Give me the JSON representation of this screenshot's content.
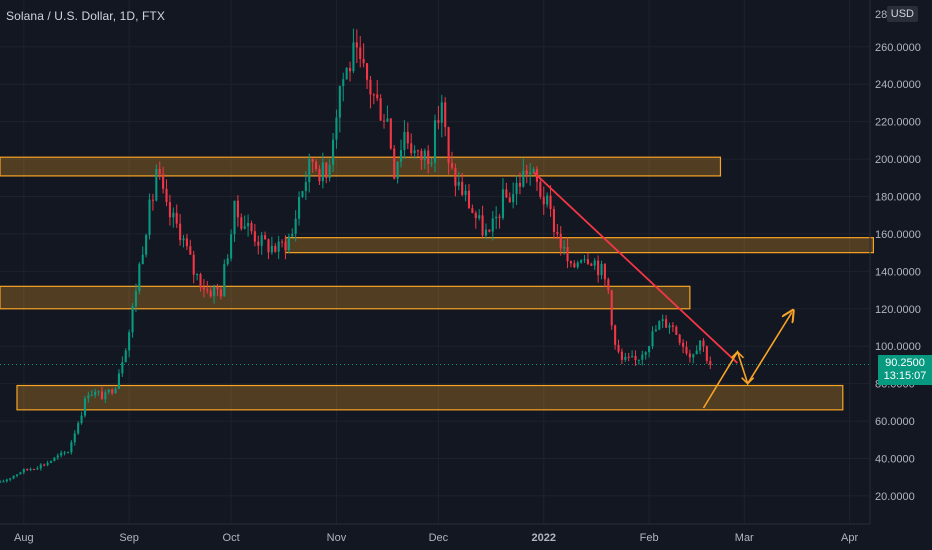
{
  "chart_data": {
    "type": "candlestick",
    "title": "Solana / U.S. Dollar, 1D, FTX",
    "currency": "USD",
    "y_axis": {
      "ylim": [
        5,
        285
      ],
      "tick_values": [
        20,
        40,
        60,
        80,
        100,
        120,
        140,
        160,
        180,
        200,
        220,
        240,
        260
      ],
      "tick_labels": [
        "20.0000",
        "40.0000",
        "60.0000",
        "80.0000",
        "100.0000",
        "120.0000",
        "140.0000",
        "160.0000",
        "180.0000",
        "200.0000",
        "220.0000",
        "240.0000",
        "260.0000"
      ],
      "top_label": "28"
    },
    "x_axis": {
      "range": [
        "2021-07-25",
        "2022-04-07"
      ],
      "ticks": [
        {
          "date": "2021-08-01",
          "label": "Aug"
        },
        {
          "date": "2021-09-01",
          "label": "Sep"
        },
        {
          "date": "2021-10-01",
          "label": "Oct"
        },
        {
          "date": "2021-11-01",
          "label": "Nov"
        },
        {
          "date": "2021-12-01",
          "label": "Dec"
        },
        {
          "date": "2022-01-01",
          "label": "2022"
        },
        {
          "date": "2022-02-01",
          "label": "Feb"
        },
        {
          "date": "2022-03-01",
          "label": "Mar"
        },
        {
          "date": "2022-04-01",
          "label": "Apr"
        }
      ]
    },
    "grid": true,
    "last_price": {
      "value": 90.25,
      "label": "90.2500",
      "countdown": "13:15:07"
    },
    "close_path": [
      [
        "2021-07-25",
        27
      ],
      [
        "2021-07-31",
        33
      ],
      [
        "2021-08-07",
        37
      ],
      [
        "2021-08-14",
        44
      ],
      [
        "2021-08-18",
        65
      ],
      [
        "2021-08-20",
        76
      ],
      [
        "2021-08-25",
        73
      ],
      [
        "2021-08-28",
        80
      ],
      [
        "2021-09-01",
        108
      ],
      [
        "2021-09-04",
        143
      ],
      [
        "2021-09-06",
        165
      ],
      [
        "2021-09-08",
        180
      ],
      [
        "2021-09-09",
        195
      ],
      [
        "2021-09-12",
        172
      ],
      [
        "2021-09-16",
        162
      ],
      [
        "2021-09-20",
        140
      ],
      [
        "2021-09-24",
        130
      ],
      [
        "2021-09-28",
        130
      ],
      [
        "2021-10-02",
        172
      ],
      [
        "2021-10-05",
        166
      ],
      [
        "2021-10-10",
        155
      ],
      [
        "2021-10-15",
        152
      ],
      [
        "2021-10-19",
        160
      ],
      [
        "2021-10-21",
        180
      ],
      [
        "2021-10-25",
        200
      ],
      [
        "2021-10-29",
        190
      ],
      [
        "2021-11-02",
        240
      ],
      [
        "2021-11-06",
        255
      ],
      [
        "2021-11-09",
        245
      ],
      [
        "2021-11-13",
        230
      ],
      [
        "2021-11-16",
        222
      ],
      [
        "2021-11-18",
        195
      ],
      [
        "2021-11-21",
        215
      ],
      [
        "2021-11-25",
        200
      ],
      [
        "2021-11-29",
        205
      ],
      [
        "2021-12-02",
        232
      ],
      [
        "2021-12-04",
        195
      ],
      [
        "2021-12-09",
        180
      ],
      [
        "2021-12-13",
        165
      ],
      [
        "2021-12-16",
        158
      ],
      [
        "2021-12-20",
        178
      ],
      [
        "2021-12-23",
        182
      ],
      [
        "2021-12-27",
        195
      ],
      [
        "2021-12-29",
        190
      ],
      [
        "2022-01-02",
        175
      ],
      [
        "2022-01-05",
        160
      ],
      [
        "2022-01-09",
        140
      ],
      [
        "2022-01-12",
        150
      ],
      [
        "2022-01-15",
        148
      ],
      [
        "2022-01-18",
        140
      ],
      [
        "2022-01-20",
        130
      ],
      [
        "2022-01-22",
        100
      ],
      [
        "2022-01-24",
        92
      ],
      [
        "2022-01-28",
        92
      ],
      [
        "2022-01-31",
        100
      ],
      [
        "2022-02-04",
        112
      ],
      [
        "2022-02-07",
        113
      ],
      [
        "2022-02-10",
        105
      ],
      [
        "2022-02-13",
        95
      ],
      [
        "2022-02-16",
        104
      ],
      [
        "2022-02-19",
        90
      ]
    ],
    "support_resistance_zones": [
      {
        "x0": "2021-07-25",
        "x1": "2022-02-22",
        "y0": 191,
        "y1": 201
      },
      {
        "x0": "2021-10-17",
        "x1": "2022-04-08",
        "y0": 150,
        "y1": 158
      },
      {
        "x0": "2021-07-25",
        "x1": "2022-02-13",
        "y0": 120,
        "y1": 132
      },
      {
        "x0": "2021-07-30",
        "x1": "2022-03-30",
        "y0": 66,
        "y1": 79
      }
    ],
    "trendline": {
      "from": [
        "2021-12-29",
        193
      ],
      "to": [
        "2022-02-27",
        91
      ],
      "color": "#f23645"
    },
    "projection_arrows": [
      {
        "points": [
          [
            "2022-02-17",
            67
          ],
          [
            "2022-02-27",
            97
          ],
          [
            "2022-03-02",
            80
          ],
          [
            "2022-03-15",
            118
          ]
        ],
        "color": "#f7a325"
      }
    ]
  }
}
